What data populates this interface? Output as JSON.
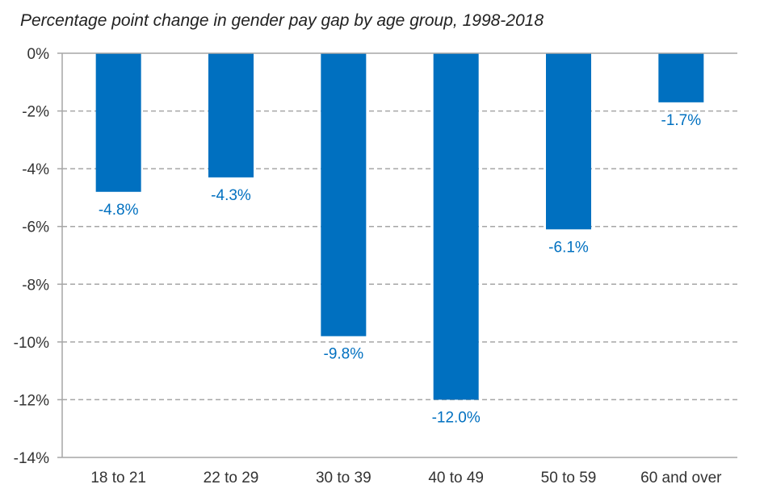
{
  "chart_data": {
    "type": "bar",
    "title": "Percentage point change in gender pay gap by age group, 1998-2018",
    "categories": [
      "18 to 21",
      "22 to 29",
      "30 to 39",
      "40 to 49",
      "50 to 59",
      "60 and over"
    ],
    "values": [
      -4.8,
      -4.3,
      -9.8,
      -12.0,
      -6.1,
      -1.7
    ],
    "data_labels": [
      "-4.8%",
      "-4.3%",
      "-9.8%",
      "-12.0%",
      "-6.1%",
      "-1.7%"
    ],
    "yticks": [
      0,
      -2,
      -4,
      -6,
      -8,
      -10,
      -12,
      -14
    ],
    "ytick_labels": [
      "0%",
      "-2%",
      "-4%",
      "-6%",
      "-8%",
      "-10%",
      "-12%",
      "-14%"
    ],
    "ylim": [
      -14,
      0
    ],
    "xlabel": "",
    "ylabel": "",
    "grid": true,
    "legend": false,
    "colors": {
      "bar": "#0070c0",
      "label": "#0070c0",
      "grid": "#a6a6a6",
      "axis": "#a6a6a6"
    }
  }
}
